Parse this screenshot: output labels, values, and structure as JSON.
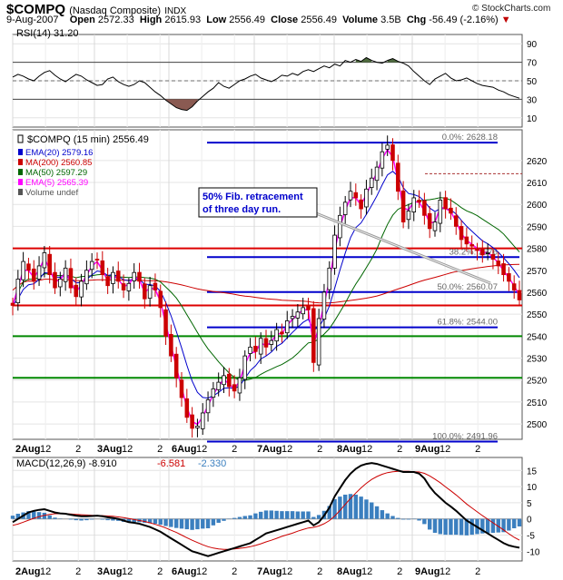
{
  "header": {
    "symbol": "$COMPQ",
    "name": "(Nasdaq Composite)",
    "exchange": "INDX",
    "brand": "© StockCharts.com",
    "date": "9-Aug-2007",
    "open_label": "Open",
    "open": "2572.33",
    "high_label": "High",
    "high": "2615.93",
    "low_label": "Low",
    "low": "2556.49",
    "close_label": "Close",
    "close": "2556.49",
    "volume_label": "Volume",
    "volume": "3.5B",
    "chg_label": "Chg",
    "chg": "-56.49 (-2.16%)",
    "chg_arrow": "▼",
    "neg_color": "#c00000"
  },
  "chart_data": [
    {
      "type": "line",
      "panel": "rsi",
      "legend": "RSI(14) 31.20",
      "ylim": [
        0,
        100
      ],
      "yticks": [
        10,
        30,
        50,
        70,
        90
      ],
      "reference_lines": [
        30,
        50,
        70
      ],
      "series": [
        {
          "name": "RSI(14)",
          "values": [
            54,
            57,
            55,
            52,
            50,
            55,
            59,
            61,
            56,
            52,
            49,
            53,
            57,
            55,
            51,
            48,
            45,
            46,
            52,
            54,
            49,
            46,
            44,
            46,
            50,
            48,
            43,
            38,
            34,
            29,
            25,
            21,
            19,
            18,
            22,
            28,
            33,
            38,
            42,
            48,
            44,
            42,
            46,
            50,
            52,
            55,
            57,
            53,
            51,
            49,
            52,
            56,
            55,
            58,
            56,
            60,
            62,
            60,
            63,
            66,
            64,
            68,
            66,
            72,
            70,
            73,
            71,
            75,
            72,
            70,
            69,
            72,
            74,
            71,
            69,
            66,
            60,
            55,
            50,
            46,
            52,
            55,
            58,
            53,
            50,
            51,
            53,
            50,
            47,
            45,
            44,
            43,
            40,
            38,
            35,
            33,
            31.2
          ]
        }
      ]
    },
    {
      "type": "line",
      "panel": "price",
      "title": "$COMPQ (15 min) 2556.49",
      "legend": [
        {
          "label": "$COMPQ (15 min) 2556.49",
          "color": "#000000"
        },
        {
          "label": "EMA(20) 2579.16",
          "color": "#0000cc"
        },
        {
          "label": "MA(200) 2560.85",
          "color": "#cc0000"
        },
        {
          "label": "MA(50) 2597.29",
          "color": "#006600"
        },
        {
          "label": "EMA(5) 2565.39",
          "color": "#ff00ff"
        },
        {
          "label": "Volume undef",
          "color": "#555555"
        }
      ],
      "ylim": [
        2493,
        2634
      ],
      "yticks": [
        2500,
        2510,
        2520,
        2530,
        2540,
        2550,
        2560,
        2570,
        2580,
        2590,
        2600,
        2610,
        2620
      ],
      "x_tick_labels": [
        "2Aug",
        "12",
        "2",
        "3Aug",
        "12",
        "2",
        "6Aug",
        "12",
        "2",
        "7Aug",
        "12",
        "2",
        "8Aug",
        "12",
        "2",
        "9Aug",
        "12",
        "2"
      ],
      "series": [
        {
          "name": "$COMPQ",
          "values": [
            2554,
            2566,
            2574,
            2570,
            2565,
            2572,
            2578,
            2568,
            2562,
            2566,
            2571,
            2562,
            2558,
            2565,
            2570,
            2574,
            2575,
            2568,
            2563,
            2569,
            2565,
            2561,
            2564,
            2569,
            2565,
            2557,
            2563,
            2561,
            2553,
            2540,
            2531,
            2521,
            2512,
            2503,
            2498,
            2499,
            2505,
            2511,
            2516,
            2519,
            2522,
            2517,
            2515,
            2521,
            2531,
            2535,
            2533,
            2539,
            2535,
            2538,
            2543,
            2541,
            2547,
            2549,
            2551,
            2553,
            2552,
            2528,
            2548,
            2560,
            2571,
            2586,
            2595,
            2601,
            2606,
            2603,
            2598,
            2607,
            2612,
            2617,
            2624,
            2627,
            2620,
            2606,
            2592,
            2597,
            2603,
            2601,
            2595,
            2589,
            2592,
            2602,
            2598,
            2596,
            2590,
            2584,
            2582,
            2581,
            2579,
            2577,
            2578,
            2575,
            2572,
            2568,
            2565,
            2561,
            2556.49
          ]
        }
      ],
      "annotations": [
        {
          "text": "50% Fib. retracement"
        },
        {
          "text": "of three day run."
        }
      ],
      "fib_levels": [
        {
          "label": "0.0%: 2628.18",
          "value": 2628.18
        },
        {
          "label": "38.2%: 2576",
          "value": 2576
        },
        {
          "label": "50.0%: 2560.07",
          "value": 2560.07
        },
        {
          "label": "61.8%: 2544.00",
          "value": 2544.0
        },
        {
          "label": "100.0%: 2491.96",
          "value": 2491.96
        }
      ],
      "red_lines": [
        2580,
        2554
      ],
      "green_lines": [
        2540,
        2521
      ],
      "dashed_line": 2614
    },
    {
      "type": "line",
      "panel": "macd",
      "legend": [
        {
          "label": "MACD(12,26,9)",
          "value": "-8.910",
          "color": "#000000"
        },
        {
          "label": "",
          "value": "-6.581",
          "color": "#cc0000"
        },
        {
          "label": "",
          "value": "-2.330",
          "color": "#3b7fbf"
        }
      ],
      "ylim": [
        -13,
        19
      ],
      "yticks": [
        -10,
        -5,
        0,
        5,
        10,
        15
      ],
      "x_tick_labels": [
        "2Aug",
        "12",
        "2",
        "3Aug",
        "12",
        "2",
        "6Aug",
        "12",
        "2",
        "7Aug",
        "12",
        "2",
        "8Aug",
        "12",
        "2",
        "9Aug",
        "12",
        "2"
      ],
      "series": [
        {
          "name": "MACD",
          "values": [
            -1,
            0,
            1,
            2,
            2.5,
            2.8,
            3,
            2.5,
            2,
            1.7,
            1.6,
            1.3,
            1,
            0.8,
            0.8,
            0.9,
            1,
            0.8,
            0.5,
            0.3,
            0,
            -0.5,
            -1,
            -1.2,
            -1.5,
            -2,
            -2.5,
            -3.2,
            -4,
            -5,
            -6,
            -7,
            -8,
            -9,
            -10,
            -10.5,
            -11,
            -11.5,
            -11,
            -10.5,
            -10,
            -9.5,
            -9,
            -8.5,
            -8,
            -7.5,
            -6.5,
            -5.5,
            -4.5,
            -4,
            -3.5,
            -3,
            -2.5,
            -2,
            -1.5,
            -1,
            -0.5,
            -2,
            -1,
            1,
            3.5,
            7,
            9.5,
            12,
            14,
            15.5,
            16.5,
            17,
            17.3,
            17,
            16.5,
            16,
            15.5,
            15,
            14.5,
            14.5,
            14.5,
            14,
            12.5,
            10,
            8,
            6.5,
            5,
            3.8,
            2.5,
            1,
            -0.5,
            -1.5,
            -2.5,
            -3.5,
            -4.5,
            -5.5,
            -6.5,
            -7.5,
            -8.2,
            -8.6,
            -8.91
          ]
        },
        {
          "name": "Signal",
          "values": [
            -2,
            -1.6,
            -1,
            -0.4,
            0.2,
            0.7,
            1.1,
            1.4,
            1.6,
            1.6,
            1.6,
            1.5,
            1.4,
            1.3,
            1.2,
            1.1,
            1,
            1,
            0.9,
            0.8,
            0.6,
            0.4,
            0.1,
            -0.2,
            -0.5,
            -0.8,
            -1.2,
            -1.7,
            -2.2,
            -2.8,
            -3.5,
            -4.2,
            -5,
            -5.8,
            -6.6,
            -7.3,
            -8,
            -8.6,
            -9,
            -9.3,
            -9.4,
            -9.4,
            -9.3,
            -9.1,
            -8.9,
            -8.6,
            -8.2,
            -7.7,
            -7.1,
            -6.6,
            -6,
            -5.4,
            -4.9,
            -4.4,
            -3.8,
            -3.3,
            -2.8,
            -2.6,
            -2.2,
            -1.5,
            -0.5,
            0.9,
            2.6,
            4.5,
            6.3,
            8,
            9.6,
            11,
            12.2,
            13.1,
            13.8,
            14.3,
            14.6,
            14.7,
            14.7,
            14.7,
            14.6,
            14.5,
            14.1,
            13.3,
            12.3,
            11.2,
            9.9,
            8.7,
            7.4,
            6,
            4.6,
            3.4,
            2.2,
            1,
            -0.1,
            -1.2,
            -2.3,
            -3.4,
            -4.6,
            -5.7,
            -6.58
          ]
        },
        {
          "name": "Histogram",
          "values": [
            1,
            1.6,
            2,
            2.4,
            2.3,
            2.1,
            1.9,
            1.1,
            0.4,
            0.1,
            0,
            -0.2,
            -0.4,
            -0.5,
            -0.4,
            -0.2,
            0,
            -0.2,
            -0.4,
            -0.5,
            -0.6,
            -0.9,
            -1.1,
            -1,
            -1,
            -1.2,
            -1.3,
            -1.5,
            -1.8,
            -2.2,
            -2.5,
            -2.8,
            -3,
            -3.2,
            -3.4,
            -3.2,
            -3,
            -2.9,
            -2,
            -1.2,
            -0.6,
            -0.1,
            0.3,
            0.6,
            0.9,
            1.1,
            1.7,
            2.2,
            2.6,
            2.6,
            2.5,
            2.4,
            2.4,
            2.4,
            2.3,
            2.3,
            2.3,
            0.6,
            1.2,
            2.5,
            4,
            6.1,
            6.9,
            7.5,
            7.7,
            7.5,
            6.9,
            6,
            5.1,
            3.9,
            2.7,
            1.7,
            0.9,
            0.3,
            -0.2,
            -0.2,
            -0.1,
            -0.5,
            -1.6,
            -3.3,
            -4.3,
            -4.7,
            -4.9,
            -4.9,
            -4.9,
            -5,
            -5.1,
            -4.9,
            -4.7,
            -4.5,
            -4.4,
            -4.3,
            -4.2,
            -4.1,
            -3.6,
            -2.9,
            -2.33
          ]
        }
      ]
    }
  ]
}
